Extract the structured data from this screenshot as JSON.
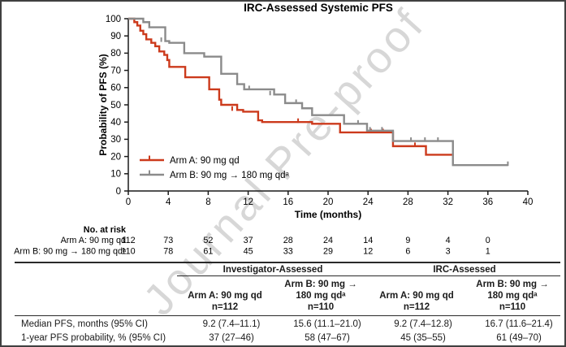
{
  "figure": {
    "watermark": "Journal Pre-proof"
  },
  "chart_data": {
    "type": "line",
    "subtype": "kaplan-meier-step",
    "title": "IRC-Assessed Systemic PFS",
    "xlabel": "Time (months)",
    "ylabel": "Probability of PFS (%)",
    "xlim": [
      0,
      40
    ],
    "ylim": [
      0,
      100
    ],
    "xticks": [
      0,
      4,
      8,
      12,
      16,
      20,
      24,
      28,
      32,
      36,
      40
    ],
    "yticks": [
      0,
      10,
      20,
      30,
      40,
      50,
      60,
      70,
      80,
      90,
      100
    ],
    "grid": false,
    "legend_position": "inside-lower-left",
    "series": [
      {
        "name": "Arm A: 90 mg qd",
        "color": "#cc3a1c",
        "steps": [
          [
            0,
            100
          ],
          [
            0.6,
            98
          ],
          [
            0.9,
            96
          ],
          [
            1.2,
            93
          ],
          [
            1.5,
            91
          ],
          [
            1.8,
            88
          ],
          [
            2.3,
            86
          ],
          [
            2.7,
            84
          ],
          [
            3.1,
            81
          ],
          [
            3.6,
            79
          ],
          [
            3.9,
            76
          ],
          [
            4.1,
            72
          ],
          [
            5.7,
            66
          ],
          [
            8.1,
            59
          ],
          [
            9.1,
            53
          ],
          [
            9.3,
            50
          ],
          [
            10.9,
            47
          ],
          [
            11.5,
            46
          ],
          [
            13.0,
            41
          ],
          [
            13.4,
            40
          ],
          [
            18.4,
            39
          ],
          [
            21.2,
            34
          ],
          [
            26.5,
            26
          ],
          [
            29.8,
            21
          ],
          [
            32.6,
            21
          ]
        ],
        "censors": [
          [
            10.4,
            47
          ],
          [
            17.0,
            40
          ],
          [
            24.3,
            34
          ],
          [
            25.5,
            34
          ],
          [
            28.7,
            26
          ]
        ]
      },
      {
        "name": "Arm B: 90 mg → 180 mg qdᵃ",
        "color": "#8b8b8b",
        "steps": [
          [
            0,
            100
          ],
          [
            1.5,
            98
          ],
          [
            2.1,
            95
          ],
          [
            3.7,
            87
          ],
          [
            4.1,
            86
          ],
          [
            5.6,
            80
          ],
          [
            7.6,
            78
          ],
          [
            9.3,
            68
          ],
          [
            10.9,
            62
          ],
          [
            11.6,
            59
          ],
          [
            14.6,
            56
          ],
          [
            15.7,
            51
          ],
          [
            17.4,
            48
          ],
          [
            18.4,
            44
          ],
          [
            21.6,
            39
          ],
          [
            23.9,
            35
          ],
          [
            26.5,
            29
          ],
          [
            32.5,
            15
          ],
          [
            38.0,
            15
          ]
        ],
        "censors": [
          [
            3.3,
            87
          ],
          [
            12.1,
            59
          ],
          [
            14.2,
            56
          ],
          [
            16.8,
            51
          ],
          [
            23.0,
            39
          ],
          [
            24.2,
            35
          ],
          [
            25.4,
            35
          ],
          [
            28.3,
            29
          ],
          [
            29.7,
            29
          ],
          [
            31.0,
            29
          ],
          [
            38.0,
            15
          ]
        ]
      }
    ]
  },
  "risk_table": {
    "header": "No. at risk",
    "times": [
      0,
      4,
      8,
      12,
      16,
      20,
      24,
      28,
      32,
      36
    ],
    "rows": [
      {
        "label": "Arm A: 90 mg qd",
        "values": [
          "112",
          "73",
          "52",
          "37",
          "28",
          "24",
          "14",
          "9",
          "4",
          "0"
        ]
      },
      {
        "label": "Arm B: 90 mg → 180 mg qdᵃ",
        "values": [
          "110",
          "78",
          "61",
          "45",
          "33",
          "29",
          "12",
          "6",
          "3",
          "1"
        ]
      }
    ]
  },
  "summary_table": {
    "groups": [
      {
        "label": "Investigator-Assessed"
      },
      {
        "label": "IRC-Assessed"
      }
    ],
    "columns": [
      {
        "header": "Arm A: 90 mg qd\nn=112"
      },
      {
        "header": "Arm B: 90 mg →\n180 mg qdᵃ\nn=110"
      },
      {
        "header": "Arm A: 90 mg qd\nn=112"
      },
      {
        "header": "Arm B: 90 mg →\n180 mg qdᵃ\nn=110"
      }
    ],
    "rows": [
      {
        "label": "Median PFS, months (95% CI)",
        "values": [
          "9.2 (7.4–11.1)",
          "15.6 (11.1–21.0)",
          "9.2 (7.4–12.8)",
          "16.7 (11.6–21.4)"
        ]
      },
      {
        "label": "1-year PFS probability, % (95% CI)",
        "values": [
          "37 (27–46)",
          "58 (47–67)",
          "45 (35–55)",
          "61 (49–70)"
        ]
      }
    ]
  }
}
